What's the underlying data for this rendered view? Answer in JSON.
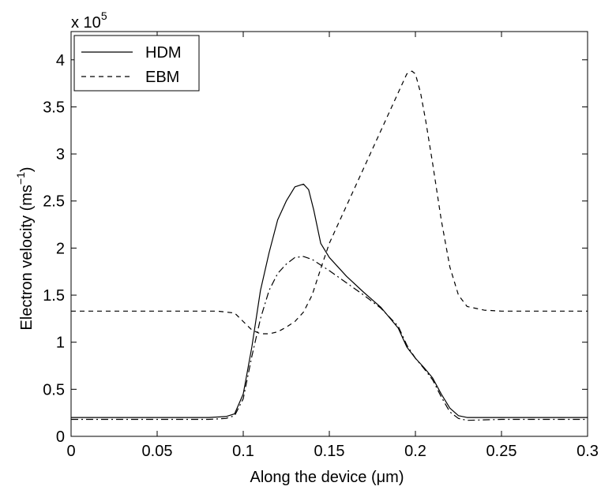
{
  "chart_data": {
    "type": "line",
    "title": "",
    "xlabel_prefix": "Along the device (",
    "xlabel_unit": "μm",
    "xlabel_suffix": ")",
    "ylabel_prefix": "Electron velocity (ms",
    "ylabel_exp": "−1",
    "ylabel_suffix": ")",
    "y_multiplier_base": "x 10",
    "y_multiplier_exp": "5",
    "xlim": [
      0,
      0.3
    ],
    "ylim": [
      0,
      4.3
    ],
    "x_ticks": [
      0,
      0.05,
      0.1,
      0.15,
      0.2,
      0.25,
      0.3
    ],
    "x_tick_labels": [
      "0",
      "0.05",
      "0.1",
      "0.15",
      "0.2",
      "0.25",
      "0.3"
    ],
    "y_ticks": [
      0,
      0.5,
      1,
      1.5,
      2,
      2.5,
      3,
      3.5,
      4
    ],
    "y_tick_labels": [
      "0",
      "0.5",
      "1",
      "1.5",
      "2",
      "2.5",
      "3",
      "3.5",
      "4"
    ],
    "legend_position": "top-left",
    "series": [
      {
        "name": "HDM",
        "style": "solid",
        "color": "#000000",
        "x": [
          0,
          0.05,
          0.08,
          0.09,
          0.095,
          0.1,
          0.105,
          0.11,
          0.115,
          0.12,
          0.125,
          0.13,
          0.135,
          0.138,
          0.141,
          0.145,
          0.15,
          0.16,
          0.17,
          0.18,
          0.19,
          0.195,
          0.2,
          0.205,
          0.21,
          0.215,
          0.22,
          0.225,
          0.23,
          0.25,
          0.3
        ],
        "y": [
          0.2,
          0.2,
          0.2,
          0.21,
          0.24,
          0.45,
          0.95,
          1.55,
          1.95,
          2.3,
          2.5,
          2.65,
          2.68,
          2.62,
          2.4,
          2.05,
          1.9,
          1.7,
          1.53,
          1.37,
          1.15,
          0.95,
          0.83,
          0.73,
          0.62,
          0.45,
          0.3,
          0.22,
          0.2,
          0.2,
          0.2
        ]
      },
      {
        "name": "EBM",
        "style": "dashed",
        "color": "#000000",
        "x": [
          0,
          0.05,
          0.085,
          0.095,
          0.1,
          0.105,
          0.11,
          0.115,
          0.12,
          0.125,
          0.13,
          0.135,
          0.14,
          0.145,
          0.15,
          0.16,
          0.17,
          0.18,
          0.19,
          0.195,
          0.198,
          0.2,
          0.203,
          0.206,
          0.21,
          0.215,
          0.22,
          0.225,
          0.23,
          0.24,
          0.25,
          0.3
        ],
        "y": [
          1.33,
          1.33,
          1.33,
          1.31,
          1.22,
          1.13,
          1.09,
          1.09,
          1.11,
          1.16,
          1.22,
          1.32,
          1.5,
          1.78,
          2.05,
          2.45,
          2.85,
          3.25,
          3.65,
          3.85,
          3.88,
          3.85,
          3.65,
          3.35,
          2.9,
          2.3,
          1.8,
          1.5,
          1.38,
          1.34,
          1.33,
          1.33
        ]
      },
      {
        "name": "",
        "style": "dash-dot",
        "color": "#000000",
        "x": [
          0,
          0.05,
          0.08,
          0.09,
          0.095,
          0.1,
          0.105,
          0.11,
          0.115,
          0.12,
          0.125,
          0.13,
          0.135,
          0.14,
          0.145,
          0.15,
          0.16,
          0.17,
          0.18,
          0.19,
          0.195,
          0.2,
          0.205,
          0.21,
          0.215,
          0.22,
          0.225,
          0.23,
          0.25,
          0.3
        ],
        "y": [
          0.18,
          0.18,
          0.18,
          0.19,
          0.22,
          0.4,
          0.85,
          1.25,
          1.55,
          1.73,
          1.83,
          1.9,
          1.91,
          1.88,
          1.82,
          1.76,
          1.63,
          1.5,
          1.36,
          1.17,
          0.97,
          0.83,
          0.72,
          0.6,
          0.42,
          0.26,
          0.19,
          0.17,
          0.18,
          0.18
        ]
      }
    ]
  }
}
